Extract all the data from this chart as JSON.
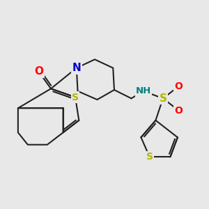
{
  "bg": "#e8e8e8",
  "bc": "#222222",
  "lw": 1.5,
  "figsize": [
    3.0,
    3.0
  ],
  "dpi": 100,
  "xlim": [
    0.0,
    8.5
  ],
  "ylim": [
    0.5,
    7.5
  ]
}
